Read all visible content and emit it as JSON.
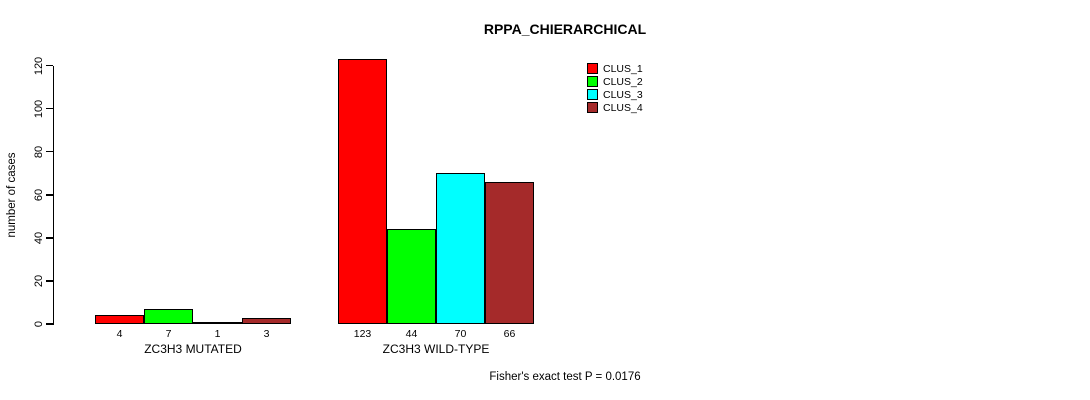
{
  "title": "RPPA_CHIERARCHICAL",
  "footer": "Fisher's exact test P = 0.0176",
  "y_axis": {
    "label": "number of cases"
  },
  "chart_data": {
    "type": "bar",
    "title": "RPPA_CHIERARCHICAL",
    "xlabel": "",
    "ylabel": "number of cases",
    "ylim": [
      0,
      120
    ],
    "yticks": [
      0,
      20,
      40,
      60,
      80,
      100,
      120
    ],
    "grid": false,
    "categories": [
      "ZC3H3 MUTATED",
      "ZC3H3 WILD-TYPE"
    ],
    "series": [
      {
        "name": "CLUS_1",
        "color": "#ff0000",
        "values": [
          4,
          123
        ]
      },
      {
        "name": "CLUS_2",
        "color": "#00ff00",
        "values": [
          7,
          44
        ]
      },
      {
        "name": "CLUS_3",
        "color": "#00ffff",
        "values": [
          1,
          70
        ]
      },
      {
        "name": "CLUS_4",
        "color": "#a52a2a",
        "values": [
          3,
          66
        ]
      }
    ],
    "bar_labels": [
      [
        4,
        7,
        1,
        3
      ],
      [
        123,
        44,
        70,
        66
      ]
    ],
    "legend_position": "top-right",
    "annotation": "Fisher's exact test P = 0.0176"
  }
}
